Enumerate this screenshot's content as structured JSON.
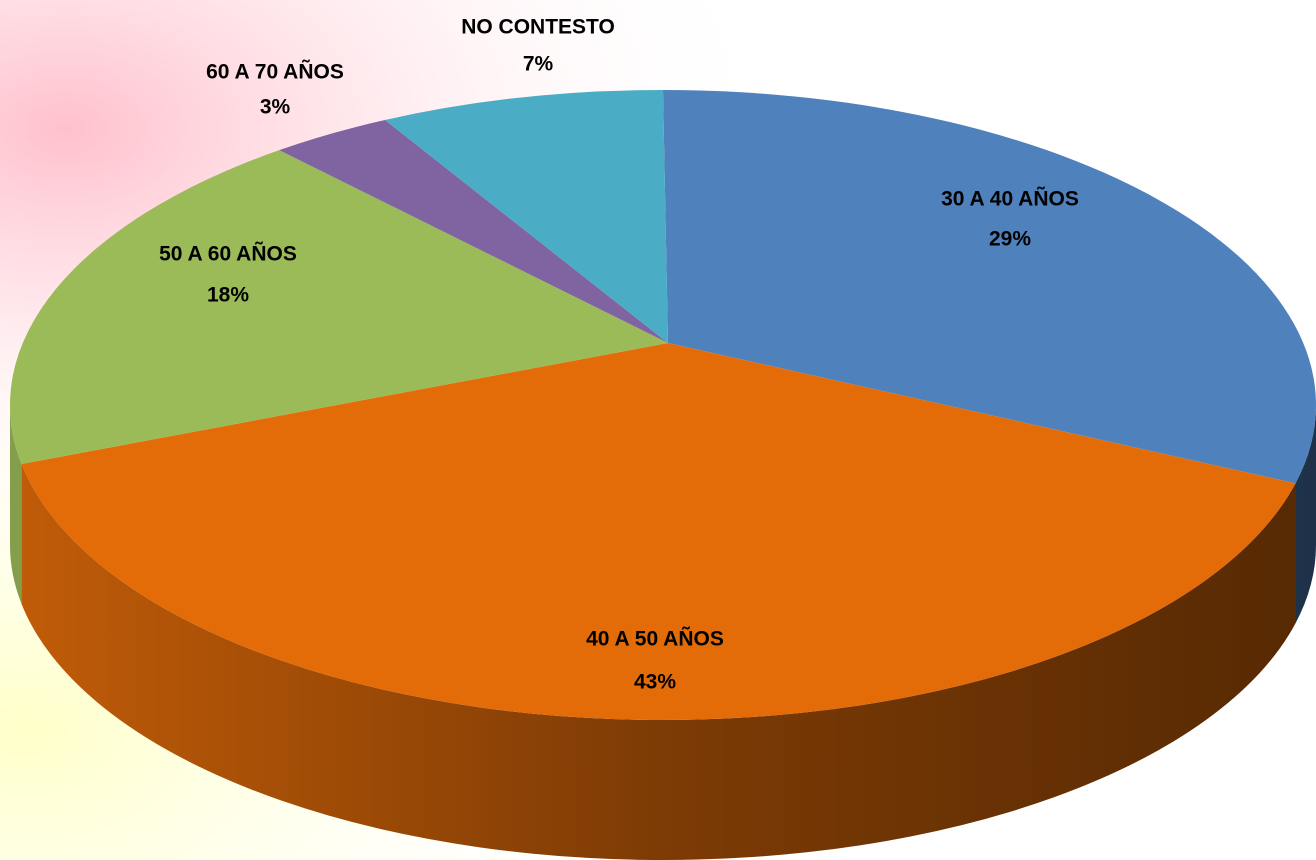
{
  "chart_data": {
    "type": "pie",
    "categories": [
      "30 A 40 AÑOS",
      "40 A 50 AÑOS",
      "50 A 60 AÑOS",
      "60 A 70 AÑOS",
      "NO CONTESTO"
    ],
    "values": [
      29,
      43,
      18,
      3,
      7
    ],
    "value_labels": [
      "29%",
      "43%",
      "18%",
      "3%",
      "7%"
    ],
    "colors": [
      "#4f81bd",
      "#e36c09",
      "#9bbb59",
      "#8064a2",
      "#4bacc6"
    ]
  }
}
